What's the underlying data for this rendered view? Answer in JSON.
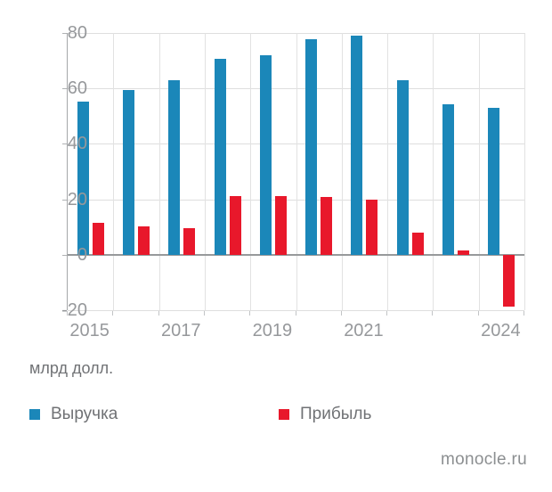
{
  "unit_label": "млрд долл.",
  "watermark": "monocle.ru",
  "colors": {
    "revenue": "#1b87b9",
    "profit": "#e8182b",
    "grid": "#dedede",
    "zero_line": "#97999b",
    "tick_text": "#96989b",
    "label_text": "#707275"
  },
  "legend": [
    {
      "name": "Выручка",
      "color": "#1b87b9"
    },
    {
      "name": "Прибыль",
      "color": "#e8182b"
    }
  ],
  "chart_data": {
    "type": "bar",
    "categories": [
      "2015",
      "2016",
      "2017",
      "2018",
      "2019",
      "2020",
      "2021",
      "2022",
      "2023",
      "2024"
    ],
    "series": [
      {
        "name": "Выручка",
        "color": "#1b87b9",
        "values": [
          55.4,
          59.4,
          62.8,
          70.8,
          72.0,
          77.9,
          79.0,
          63.1,
          54.2,
          53.1
        ]
      },
      {
        "name": "Прибыль",
        "color": "#e8182b",
        "values": [
          11.4,
          10.3,
          9.6,
          21.1,
          21.0,
          20.9,
          19.9,
          8.0,
          1.7,
          -18.8
        ]
      }
    ],
    "title": "",
    "xlabel": "",
    "ylabel": "млрд долл.",
    "ylim": [
      -20,
      80
    ],
    "yticks": [
      80,
      60,
      40,
      20,
      0,
      -20
    ],
    "xtick_labels_shown": [
      "2015",
      "2017",
      "2019",
      "2021",
      "2024"
    ],
    "grid": true,
    "legend_position": "bottom"
  }
}
